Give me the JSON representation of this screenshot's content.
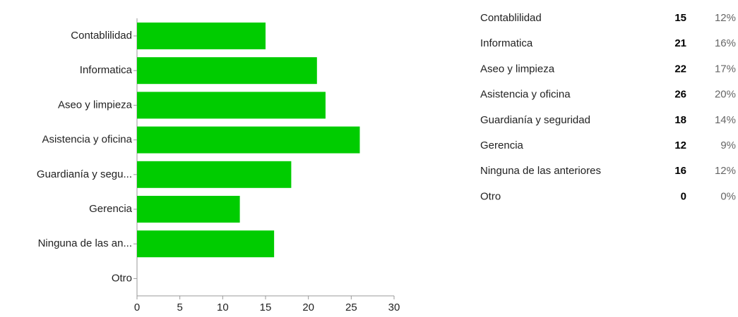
{
  "chart_data": {
    "type": "bar",
    "orientation": "horizontal",
    "categories": [
      "Contablilidad",
      "Informatica",
      "Aseo y limpieza",
      "Asistencia y oficina",
      "Guardianía y segu...",
      "Gerencia",
      "Ninguna de las an...",
      "Otro"
    ],
    "values": [
      15,
      21,
      22,
      26,
      18,
      12,
      16,
      0
    ],
    "color": "#00cc00",
    "xlim": [
      0,
      30
    ],
    "xticks": [
      0,
      5,
      10,
      15,
      20,
      25,
      30
    ],
    "grid": false
  },
  "table": {
    "rows": [
      [
        "Contablilidad",
        15,
        "12%"
      ],
      [
        "Informatica",
        21,
        "16%"
      ],
      [
        "Aseo y limpieza",
        22,
        "17%"
      ],
      [
        "Asistencia y oficina",
        26,
        "20%"
      ],
      [
        "Guardianía y seguridad",
        18,
        "14%"
      ],
      [
        "Gerencia",
        12,
        "9%"
      ],
      [
        "Ninguna de las anteriores",
        16,
        "12%"
      ],
      [
        "Otro",
        0,
        "0%"
      ]
    ]
  }
}
